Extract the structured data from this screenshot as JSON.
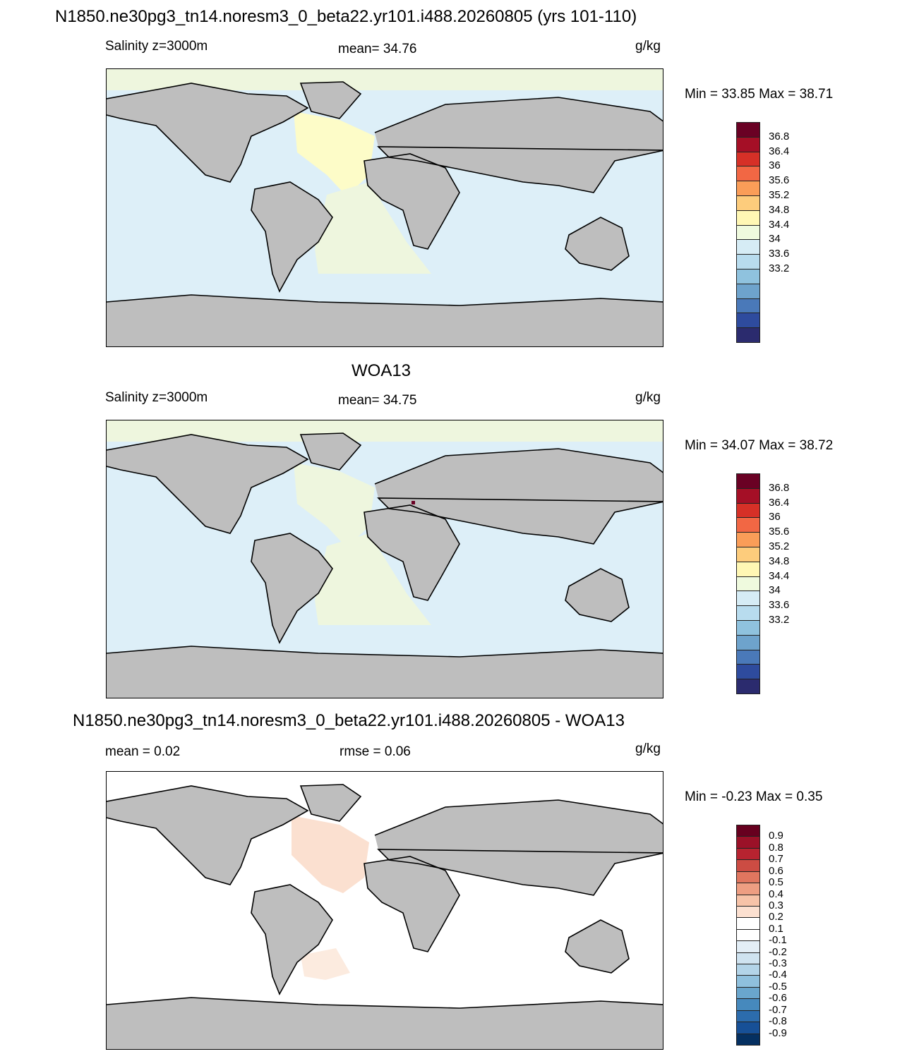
{
  "header": {
    "main_title": "N1850.ne30pg3_tn14.noresm3_0_beta22.yr101.i488.20260805 (yrs 101-110)"
  },
  "panels": [
    {
      "title": "",
      "left_label": "Salinity z=3000m",
      "center_label": "mean=  34.76",
      "units": "g/kg",
      "minmax": "Min =  33.85 Max =  38.71",
      "map": {
        "ocean_color": "#ddeff8",
        "land_color": "#bebebe",
        "atlantic_color": "#fdfcc8",
        "south_atlantic_color": "#eef6de"
      }
    },
    {
      "title": "WOA13",
      "left_label": "Salinity z=3000m",
      "center_label": "mean=  34.75",
      "units": "g/kg",
      "minmax": "Min =  34.07 Max =  38.72",
      "map": {
        "ocean_color": "#ddeff8",
        "land_color": "#bebebe",
        "atlantic_color": "#eef6de",
        "south_atlantic_color": "#eef6de"
      }
    },
    {
      "title": "N1850.ne30pg3_tn14.noresm3_0_beta22.yr101.i488.20260805 - WOA13",
      "left_label": "mean =   0.02",
      "center_label": "rmse =   0.06",
      "units": "g/kg",
      "minmax": "Min =  -0.23 Max =   0.35",
      "map": {
        "ocean_color": "#ffffff",
        "land_color": "#bebebe",
        "atlantic_color": "#fbe0d0",
        "south_atlantic_color": "#fcebdf"
      }
    }
  ],
  "colorbar_salinity": {
    "labels": [
      "36.8",
      "36.4",
      "36",
      "35.6",
      "35.2",
      "34.8",
      "34.4",
      "34",
      "33.6",
      "33.2"
    ],
    "colors": [
      "#6a0124",
      "#a50f26",
      "#d63027",
      "#f26744",
      "#fa9d58",
      "#fdcc7c",
      "#fff7b4",
      "#effade",
      "#d6ecf5",
      "#b8dcee",
      "#8fc2de",
      "#6ea3cc",
      "#4a79b9",
      "#2e4b9e",
      "#2b2b6e"
    ]
  },
  "colorbar_difference": {
    "labels": [
      "0.9",
      "0.8",
      "0.7",
      "0.6",
      "0.5",
      "0.4",
      "0.3",
      "0.2",
      "0.1",
      "-0.1",
      "-0.2",
      "-0.3",
      "-0.4",
      "-0.5",
      "-0.6",
      "-0.7",
      "-0.8",
      "-0.9"
    ],
    "colors": [
      "#67001f",
      "#9b1128",
      "#b72330",
      "#cc4c43",
      "#e0765f",
      "#ee9e82",
      "#f7c3a8",
      "#fce0d0",
      "#ffffff",
      "#ffffff",
      "#e3eef6",
      "#cfe3f0",
      "#b3d4e8",
      "#8fc0dd",
      "#6aa6cd",
      "#4689bd",
      "#2c6cad",
      "#175097",
      "#053061"
    ]
  }
}
